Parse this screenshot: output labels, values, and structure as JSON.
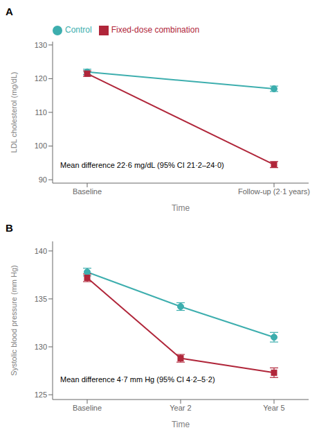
{
  "chart_data": [
    {
      "type": "line",
      "title": "A",
      "xlabel": "Time",
      "ylabel": "LDL cholesterol (mg/dL)",
      "categories": [
        "Baseline",
        "Follow-up (2·1 years)"
      ],
      "series": [
        {
          "name": "Control",
          "color": "#3DAEAE",
          "marker": "circle",
          "values": [
            122.0,
            117.0
          ],
          "yerr": [
            0.8,
            0.8
          ]
        },
        {
          "name": "Fixed-dose combination",
          "color": "#B0263A",
          "marker": "square",
          "values": [
            121.5,
            94.5
          ],
          "yerr": [
            0.8,
            0.9
          ]
        }
      ],
      "ylim": [
        89,
        131
      ],
      "yticks": [
        90,
        100,
        110,
        120,
        130
      ],
      "annotation": "Mean difference 22·6 mg/dL (95% CI 21·2–24·0)",
      "legend": "upper left"
    },
    {
      "type": "line",
      "title": "B",
      "xlabel": "Time",
      "ylabel": "Systolic blood pressure (mm Hg)",
      "categories": [
        "Baseline",
        "Year 2",
        "Year 5"
      ],
      "series": [
        {
          "color": "#3DAEAE",
          "marker": "circle",
          "values": [
            137.8,
            134.2,
            131.0
          ],
          "yerr": [
            0.4,
            0.4,
            0.5
          ]
        },
        {
          "color": "#B0263A",
          "marker": "square",
          "values": [
            137.2,
            128.8,
            127.3
          ],
          "yerr": [
            0.4,
            0.4,
            0.5
          ]
        }
      ],
      "ylim": [
        124.5,
        141
      ],
      "yticks": [
        125,
        130,
        135,
        140
      ],
      "annotation": "Mean difference 4·7 mm Hg (95% CI 4·2–5·2)"
    }
  ]
}
